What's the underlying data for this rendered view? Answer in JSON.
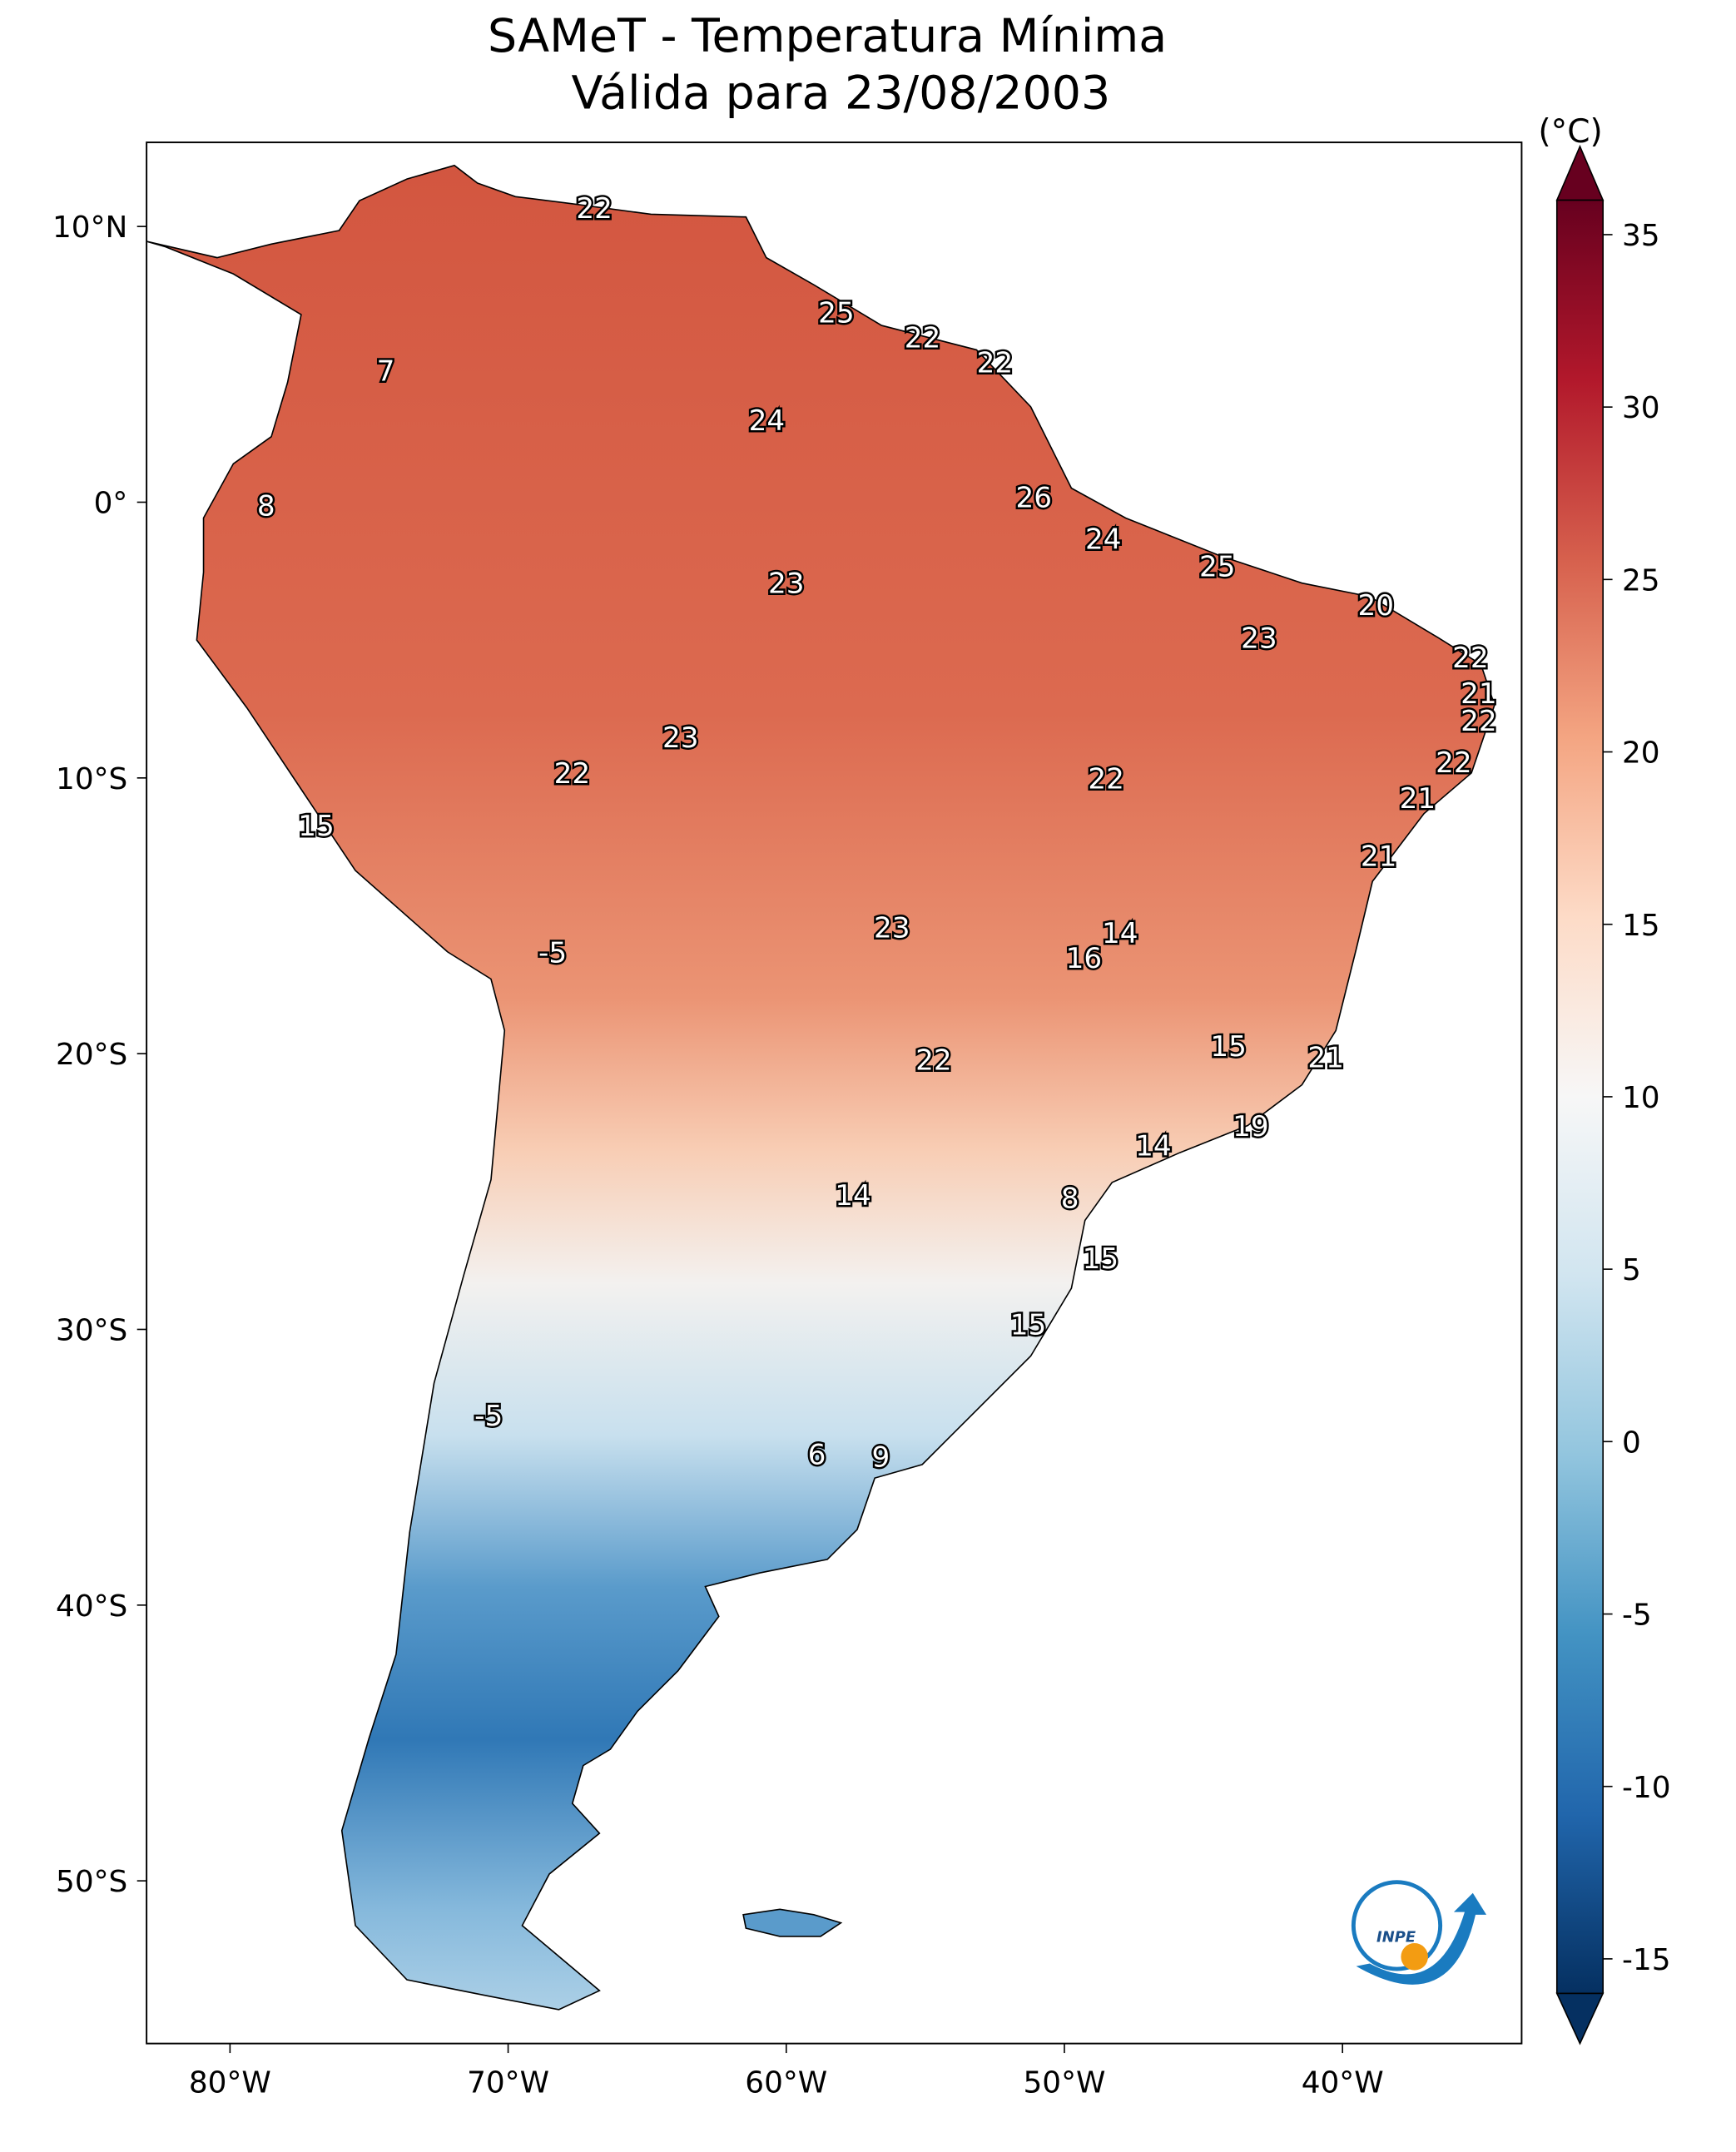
{
  "chart_data": {
    "type": "map",
    "title": "SAMeT - Temperatura Mínima",
    "subtitle": "Válida para 23/08/2003",
    "xlim": [
      -83,
      -33.56
    ],
    "ylim": [
      -55.9,
      13.05
    ],
    "xticks": [
      {
        "value": -80,
        "label": "80°W"
      },
      {
        "value": -70,
        "label": "70°W"
      },
      {
        "value": -60,
        "label": "60°W"
      },
      {
        "value": -50,
        "label": "50°W"
      },
      {
        "value": -40,
        "label": "40°W"
      }
    ],
    "yticks": [
      {
        "value": 10,
        "label": "10°N"
      },
      {
        "value": 0,
        "label": "0°"
      },
      {
        "value": -10,
        "label": "10°S"
      },
      {
        "value": -20,
        "label": "20°S"
      },
      {
        "value": -30,
        "label": "30°S"
      },
      {
        "value": -40,
        "label": "40°S"
      },
      {
        "value": -50,
        "label": "50°S"
      }
    ],
    "colorbar": {
      "label": "(°C)",
      "clim": [
        -16,
        36
      ],
      "ticks": [
        35,
        30,
        25,
        20,
        15,
        10,
        5,
        0,
        -5,
        -10,
        -15
      ],
      "colors": [
        "#053061",
        "#2166ac",
        "#4393c3",
        "#92c5de",
        "#d1e5f0",
        "#f7f7f7",
        "#fddbc7",
        "#f4a582",
        "#d6604d",
        "#b2182b",
        "#67001f"
      ]
    },
    "points": [
      {
        "lon": -66.9,
        "lat": 10.6,
        "value": 22
      },
      {
        "lon": -58.2,
        "lat": 6.8,
        "value": 25
      },
      {
        "lon": -55.1,
        "lat": 5.9,
        "value": 22
      },
      {
        "lon": -52.5,
        "lat": 5.0,
        "value": 22
      },
      {
        "lon": -74.4,
        "lat": 4.7,
        "value": 7
      },
      {
        "lon": -60.7,
        "lat": 2.9,
        "value": 24
      },
      {
        "lon": -78.7,
        "lat": -0.2,
        "value": 8
      },
      {
        "lon": -51.1,
        "lat": 0.1,
        "value": 26
      },
      {
        "lon": -48.6,
        "lat": -1.4,
        "value": 24
      },
      {
        "lon": -44.5,
        "lat": -2.4,
        "value": 25
      },
      {
        "lon": -60.0,
        "lat": -3.0,
        "value": 23
      },
      {
        "lon": -38.8,
        "lat": -3.8,
        "value": 20
      },
      {
        "lon": -43.0,
        "lat": -5.0,
        "value": 23
      },
      {
        "lon": -35.4,
        "lat": -5.7,
        "value": 22
      },
      {
        "lon": -35.1,
        "lat": -7.0,
        "value": 21
      },
      {
        "lon": -35.1,
        "lat": -8.0,
        "value": 22
      },
      {
        "lon": -63.8,
        "lat": -8.6,
        "value": 23
      },
      {
        "lon": -36.0,
        "lat": -9.5,
        "value": 22
      },
      {
        "lon": -67.7,
        "lat": -9.9,
        "value": 22
      },
      {
        "lon": -48.5,
        "lat": -10.1,
        "value": 22
      },
      {
        "lon": -37.3,
        "lat": -10.8,
        "value": 21
      },
      {
        "lon": -76.9,
        "lat": -11.8,
        "value": 15
      },
      {
        "lon": -38.7,
        "lat": -12.9,
        "value": 21
      },
      {
        "lon": -56.2,
        "lat": -15.5,
        "value": 23
      },
      {
        "lon": -48.0,
        "lat": -15.7,
        "value": 14
      },
      {
        "lon": -68.4,
        "lat": -16.4,
        "value": -5
      },
      {
        "lon": -49.3,
        "lat": -16.6,
        "value": 16
      },
      {
        "lon": -44.1,
        "lat": -19.8,
        "value": 15
      },
      {
        "lon": -40.6,
        "lat": -20.2,
        "value": 21
      },
      {
        "lon": -54.7,
        "lat": -20.3,
        "value": 22
      },
      {
        "lon": -43.3,
        "lat": -22.7,
        "value": 19
      },
      {
        "lon": -46.8,
        "lat": -23.4,
        "value": 14
      },
      {
        "lon": -57.6,
        "lat": -25.2,
        "value": 14
      },
      {
        "lon": -49.8,
        "lat": -25.3,
        "value": 8
      },
      {
        "lon": -48.7,
        "lat": -27.5,
        "value": 15
      },
      {
        "lon": -51.3,
        "lat": -29.9,
        "value": 15
      },
      {
        "lon": -70.7,
        "lat": -33.2,
        "value": -5
      },
      {
        "lon": -58.9,
        "lat": -34.6,
        "value": 6
      },
      {
        "lon": -56.6,
        "lat": -34.7,
        "value": 9
      }
    ]
  }
}
